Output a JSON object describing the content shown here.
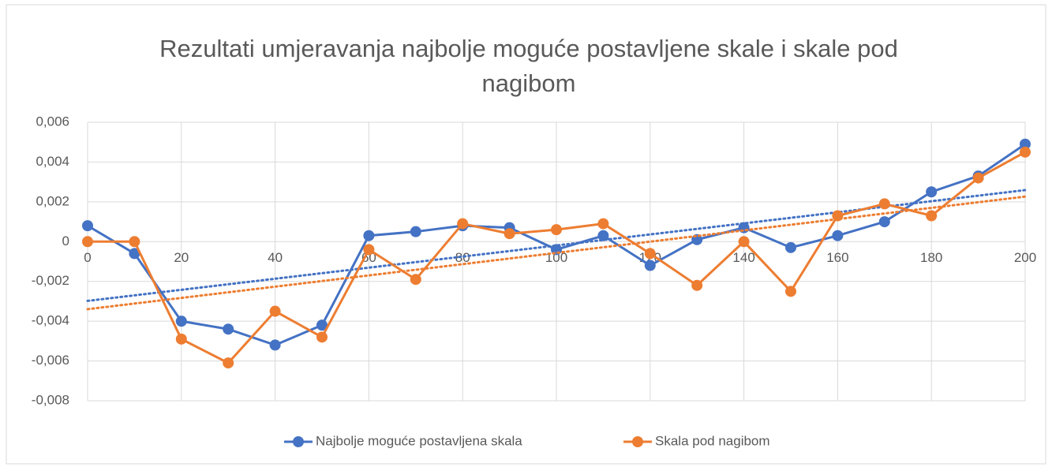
{
  "chart_data": {
    "type": "line",
    "title": "Rezultati umjeravanja najbolje moguće  postavljene skale i skale pod nagibom",
    "x": [
      0,
      10,
      20,
      30,
      40,
      50,
      60,
      70,
      80,
      90,
      100,
      110,
      120,
      130,
      140,
      150,
      160,
      170,
      180,
      190,
      200
    ],
    "series": [
      {
        "name": "Najbolje moguće postavljena skala",
        "color": "#4472c4",
        "values": [
          0.0008,
          -0.0006,
          -0.004,
          -0.0044,
          -0.0052,
          -0.0042,
          0.0003,
          0.0005,
          0.0008,
          0.0007,
          -0.0004,
          0.0003,
          -0.0012,
          0.0001,
          0.0007,
          -0.0003,
          0.0003,
          0.001,
          0.0025,
          0.0033,
          0.0049
        ]
      },
      {
        "name": "Skala pod nagibom",
        "color": "#ed7d31",
        "values": [
          0,
          0,
          -0.0049,
          -0.0061,
          -0.0035,
          -0.0048,
          -0.0004,
          -0.0019,
          0.0009,
          0.0004,
          0.0006,
          0.0009,
          -0.0006,
          -0.0022,
          0,
          -0.0025,
          0.0013,
          0.0019,
          0.0013,
          0.0032,
          0.0045
        ]
      }
    ],
    "xlim": [
      0,
      200
    ],
    "xticks": [
      0,
      20,
      40,
      60,
      80,
      100,
      120,
      140,
      160,
      180,
      200
    ],
    "ylim": [
      -0.008,
      0.006
    ],
    "yticks": [
      {
        "value": -0.008,
        "label": "-0,008"
      },
      {
        "value": -0.006,
        "label": "-0,006"
      },
      {
        "value": -0.004,
        "label": "-0,004"
      },
      {
        "value": -0.002,
        "label": "-0,002"
      },
      0,
      {
        "value": 0.002,
        "label": "0,002"
      },
      {
        "value": 0.004,
        "label": "0,004"
      },
      {
        "value": 0.006,
        "label": "0,006"
      }
    ],
    "grid": true,
    "trendline": true,
    "legend": "bottom"
  }
}
